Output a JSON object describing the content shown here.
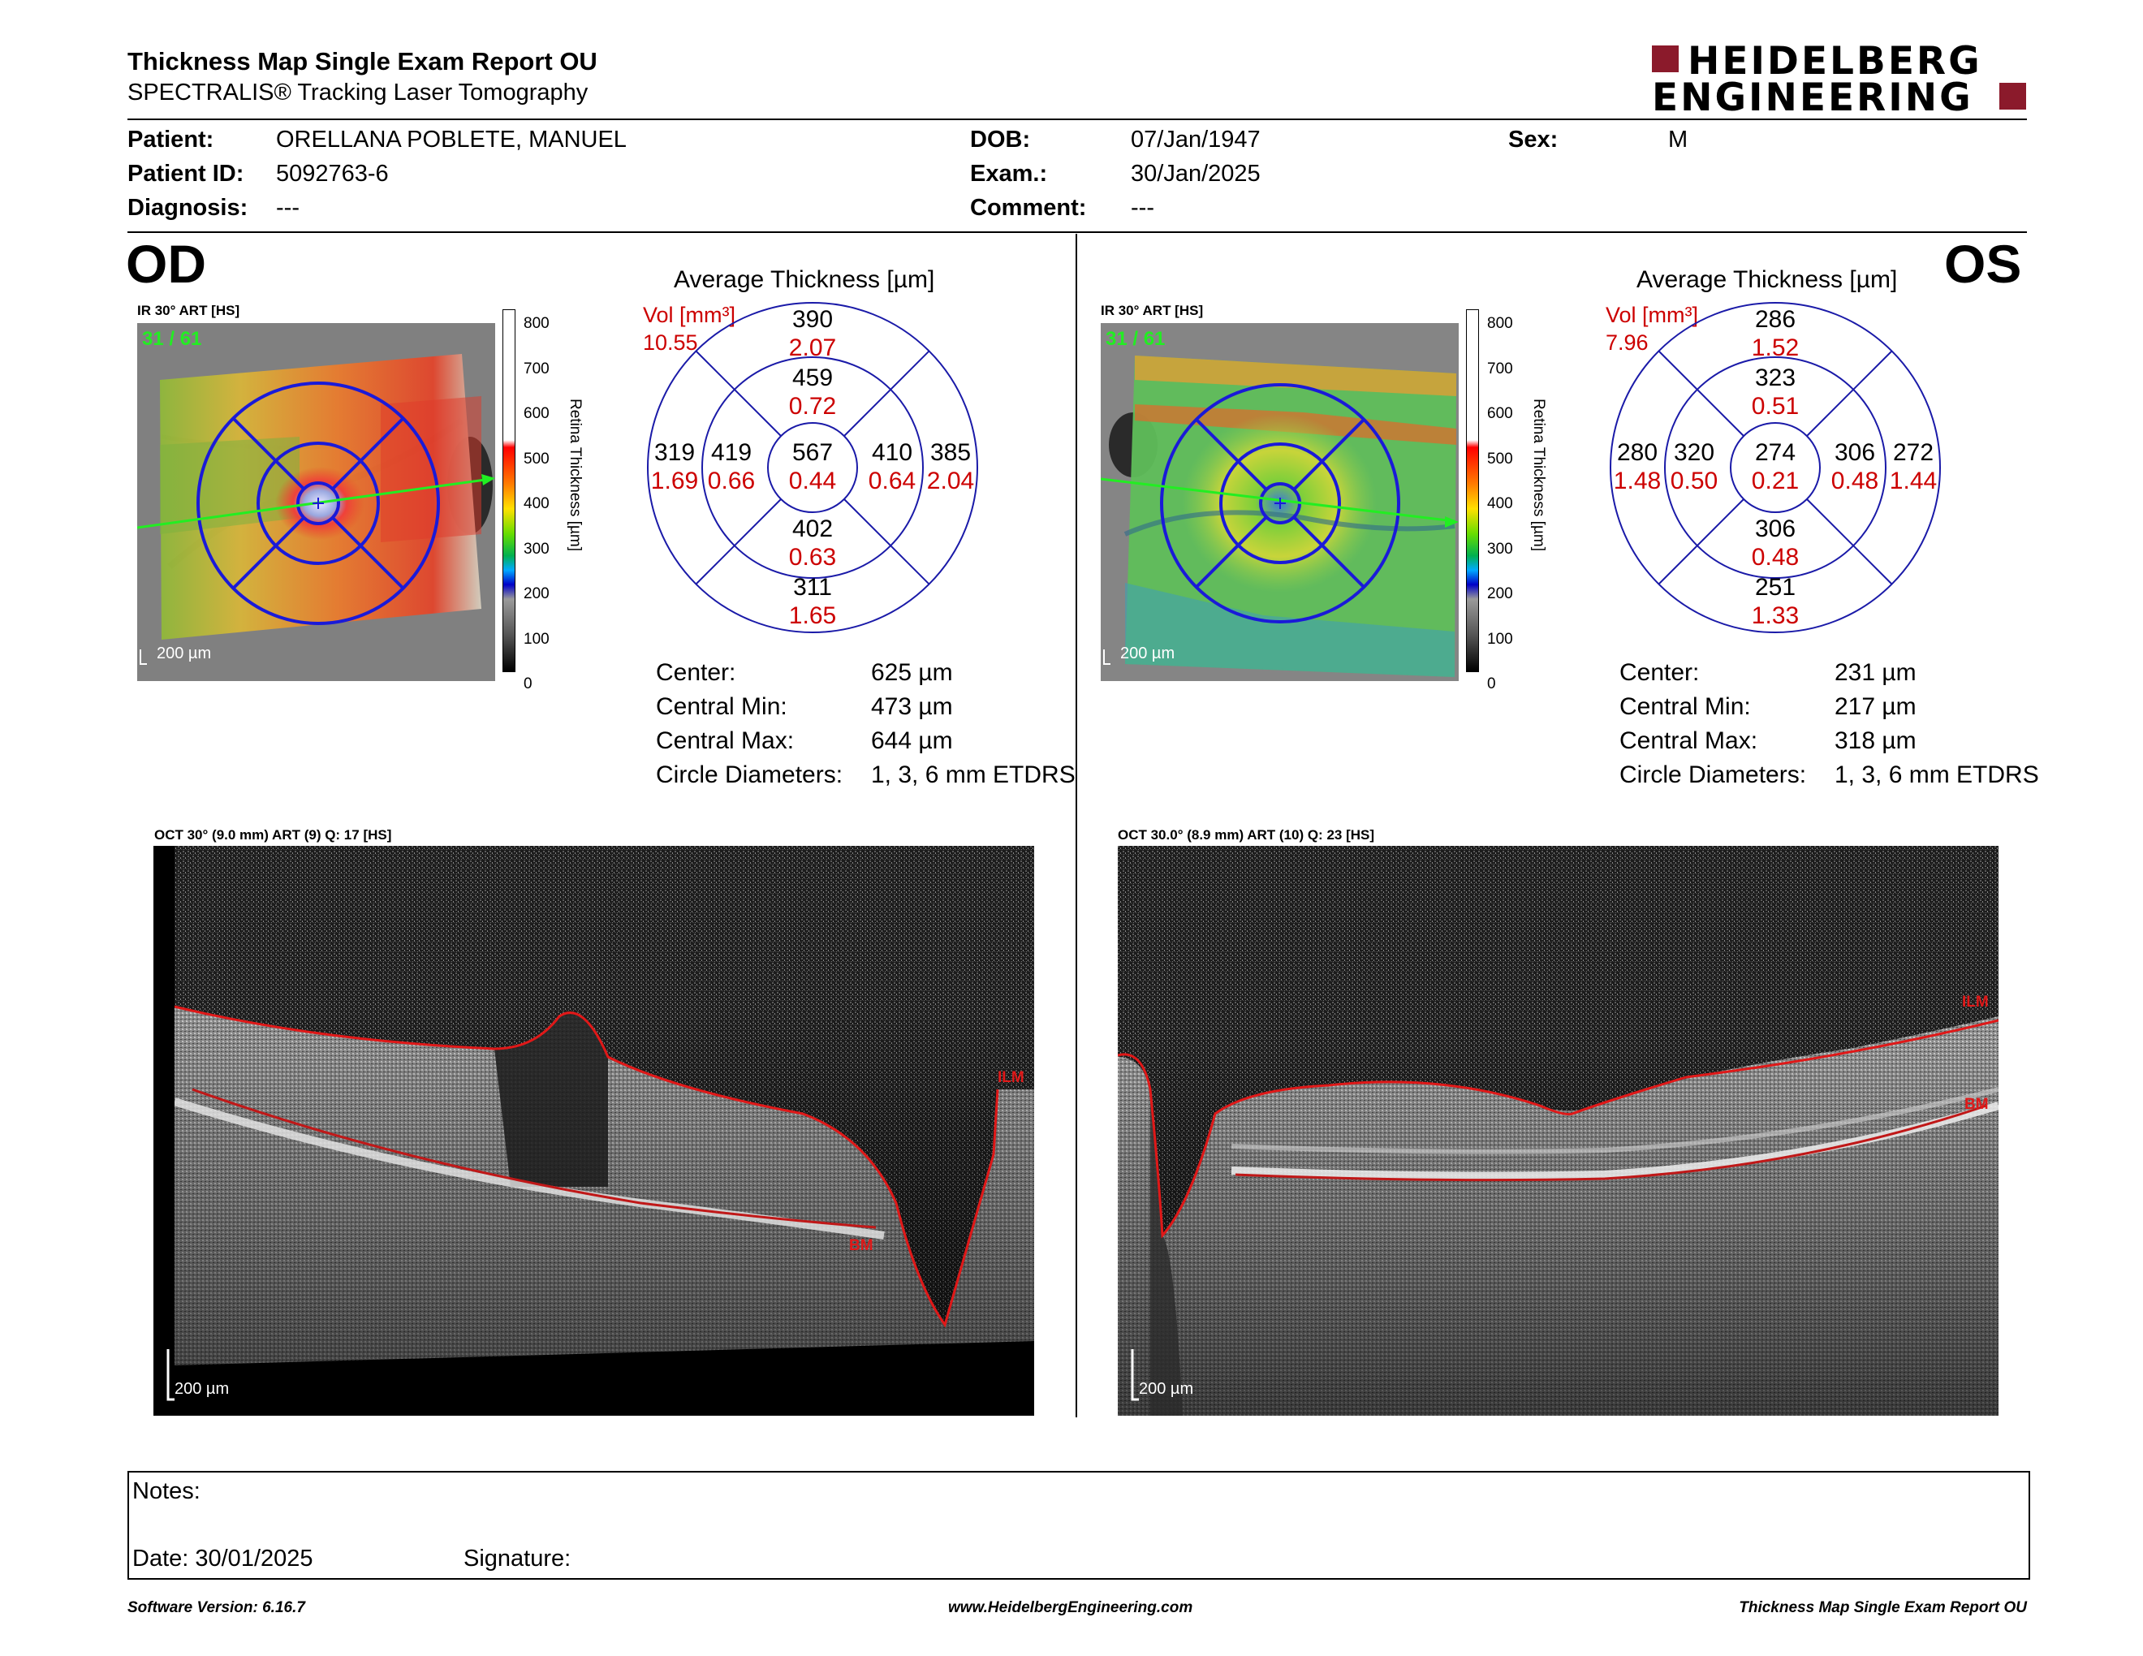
{
  "header": {
    "title": "Thickness Map Single Exam Report OU",
    "subtitle": "SPECTRALIS® Tracking Laser Tomography",
    "logo_line1": "HEIDELBERG",
    "logo_line2": "ENGINEERING",
    "brand_color": "#8b1a2b"
  },
  "patient": {
    "patient_label": "Patient:",
    "patient_value": "ORELLANA POBLETE, MANUEL",
    "id_label": "Patient ID:",
    "id_value": "5092763-6",
    "diagnosis_label": "Diagnosis:",
    "diagnosis_value": "---",
    "dob_label": "DOB:",
    "dob_value": "07/Jan/1947",
    "exam_label": "Exam.:",
    "exam_value": "30/Jan/2025",
    "comment_label": "Comment:",
    "comment_value": "---",
    "sex_label": "Sex:",
    "sex_value": "M"
  },
  "colorbar": {
    "title": "Retina Thickness [µm]",
    "ticks": [
      "800",
      "700",
      "600",
      "500",
      "400",
      "300",
      "200",
      "100",
      "0"
    ]
  },
  "od": {
    "eye": "OD",
    "fundus_label": "IR 30° ART [HS]",
    "frame_counter": "31 / 61",
    "scale_label": "200 µm",
    "avg_title": "Average Thickness [µm]",
    "vol_label": "Vol [mm³]",
    "vol_value": "10.55",
    "etdrs": {
      "center": {
        "thickness": "567",
        "volume": "0.44"
      },
      "inner_superior": {
        "thickness": "459",
        "volume": "0.72"
      },
      "inner_inferior": {
        "thickness": "402",
        "volume": "0.63"
      },
      "inner_left": {
        "thickness": "419",
        "volume": "0.66"
      },
      "inner_right": {
        "thickness": "410",
        "volume": "0.64"
      },
      "outer_superior": {
        "thickness": "390",
        "volume": "2.07"
      },
      "outer_inferior": {
        "thickness": "311",
        "volume": "1.65"
      },
      "outer_left": {
        "thickness": "319",
        "volume": "1.69"
      },
      "outer_right": {
        "thickness": "385",
        "volume": "2.04"
      }
    },
    "stats": [
      {
        "label": "Center:",
        "value": "625 µm"
      },
      {
        "label": "Central Min:",
        "value": "473 µm"
      },
      {
        "label": "Central Max:",
        "value": "644 µm"
      },
      {
        "label": "Circle Diameters:",
        "value": "1, 3, 6 mm ETDRS"
      }
    ],
    "oct_label": "OCT 30° (9.0 mm) ART (9) Q: 17 [HS]",
    "oct_scale": "200 µm",
    "ilm": "ILM",
    "bm": "BM"
  },
  "os": {
    "eye": "OS",
    "fundus_label": "IR 30° ART [HS]",
    "frame_counter": "31 / 61",
    "scale_label": "200 µm",
    "avg_title": "Average Thickness [µm]",
    "vol_label": "Vol [mm³]",
    "vol_value": "7.96",
    "etdrs": {
      "center": {
        "thickness": "274",
        "volume": "0.21"
      },
      "inner_superior": {
        "thickness": "323",
        "volume": "0.51"
      },
      "inner_inferior": {
        "thickness": "306",
        "volume": "0.48"
      },
      "inner_left": {
        "thickness": "320",
        "volume": "0.50"
      },
      "inner_right": {
        "thickness": "306",
        "volume": "0.48"
      },
      "outer_superior": {
        "thickness": "286",
        "volume": "1.52"
      },
      "outer_inferior": {
        "thickness": "251",
        "volume": "1.33"
      },
      "outer_left": {
        "thickness": "280",
        "volume": "1.48"
      },
      "outer_right": {
        "thickness": "272",
        "volume": "1.44"
      }
    },
    "stats": [
      {
        "label": "Center:",
        "value": "231 µm"
      },
      {
        "label": "Central Min:",
        "value": "217 µm"
      },
      {
        "label": "Central Max:",
        "value": "318 µm"
      },
      {
        "label": "Circle Diameters:",
        "value": "1, 3, 6 mm ETDRS"
      }
    ],
    "oct_label": "OCT 30.0° (8.9 mm) ART (10) Q: 23 [HS]",
    "oct_scale": "200 µm",
    "ilm": "ILM",
    "bm": "BM"
  },
  "notes": {
    "notes_label": "Notes:",
    "date_label": "Date: 30/01/2025",
    "signature_label": "Signature:"
  },
  "footer": {
    "software": "Software Version: 6.16.7",
    "website": "www.HeidelbergEngineering.com",
    "report": "Thickness Map Single Exam Report OU"
  }
}
